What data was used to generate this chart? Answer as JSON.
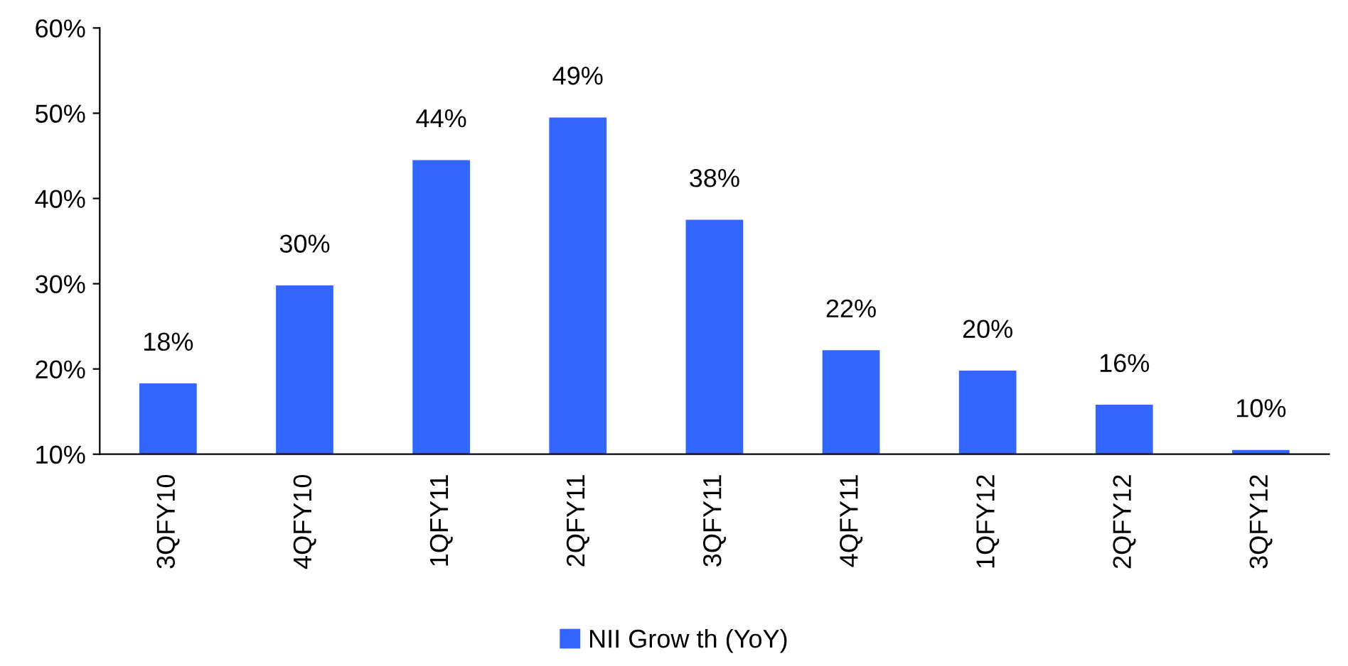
{
  "chart_data": {
    "type": "bar",
    "categories": [
      "3QFY10",
      "4QFY10",
      "1QFY11",
      "2QFY11",
      "3QFY11",
      "4QFY11",
      "1QFY12",
      "2QFY12",
      "3QFY12"
    ],
    "series": [
      {
        "name": "NII Grow th (YoY)",
        "color": "#3366ff",
        "values": [
          18.3,
          29.8,
          44.5,
          49.5,
          37.5,
          22.2,
          19.8,
          15.8,
          10.5
        ],
        "value_labels": [
          "18%",
          "30%",
          "44%",
          "49%",
          "38%",
          "22%",
          "20%",
          "16%",
          "10%"
        ]
      }
    ],
    "ylim": [
      10,
      60
    ],
    "yticks": [
      {
        "value": 10,
        "label": "10%"
      },
      {
        "value": 20,
        "label": "20%"
      },
      {
        "value": 30,
        "label": "30%"
      },
      {
        "value": 40,
        "label": "40%"
      },
      {
        "value": 50,
        "label": "50%"
      },
      {
        "value": 60,
        "label": "60%"
      }
    ],
    "grid": false,
    "legend": "bottom"
  }
}
